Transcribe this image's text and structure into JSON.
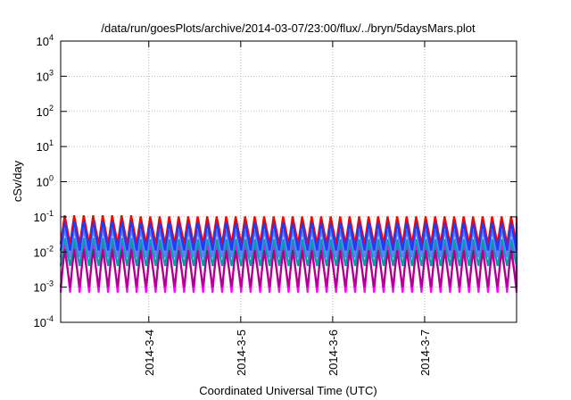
{
  "chart_data": {
    "type": "line",
    "title": "/data/run/goesPlots/archive/2014-03-07/23:00/flux/../bryn/5daysMars.plot",
    "xlabel": "Coordinated Universal Time (UTC)",
    "ylabel": "cSv/day",
    "y_scale": "log",
    "ylim_exponent": [
      -4,
      4
    ],
    "y_ticks": [
      {
        "base": "10",
        "exp": "-4"
      },
      {
        "base": "10",
        "exp": "-3"
      },
      {
        "base": "10",
        "exp": "-2"
      },
      {
        "base": "10",
        "exp": "-1"
      },
      {
        "base": "10",
        "exp": "0"
      },
      {
        "base": "10",
        "exp": "1"
      },
      {
        "base": "10",
        "exp": "2"
      },
      {
        "base": "10",
        "exp": "3"
      },
      {
        "base": "10",
        "exp": "4"
      }
    ],
    "x_range_days": [
      "2014-03-03T01:00",
      "2014-03-08T00:00"
    ],
    "x_ticks": [
      "2014-3-4",
      "2014-3-5",
      "2014-3-6",
      "2014-3-7"
    ],
    "grid": true,
    "sawtooth_cycles": 48,
    "series": [
      {
        "color": "#ff00ff",
        "peak": 0.02,
        "trough": 0.0007
      },
      {
        "color": "#b0008a",
        "peak": 0.012,
        "trough": 0.001
      },
      {
        "color": "#00a0a0",
        "peak": 0.025,
        "trough": 0.004
      },
      {
        "color": "#6080ff",
        "peak": 0.045,
        "trough": 0.007
      },
      {
        "color": "#ff0000",
        "peak": 0.11,
        "trough": 0.017
      },
      {
        "color": "#1a3cff",
        "peak": 0.075,
        "trough": 0.011
      }
    ]
  }
}
